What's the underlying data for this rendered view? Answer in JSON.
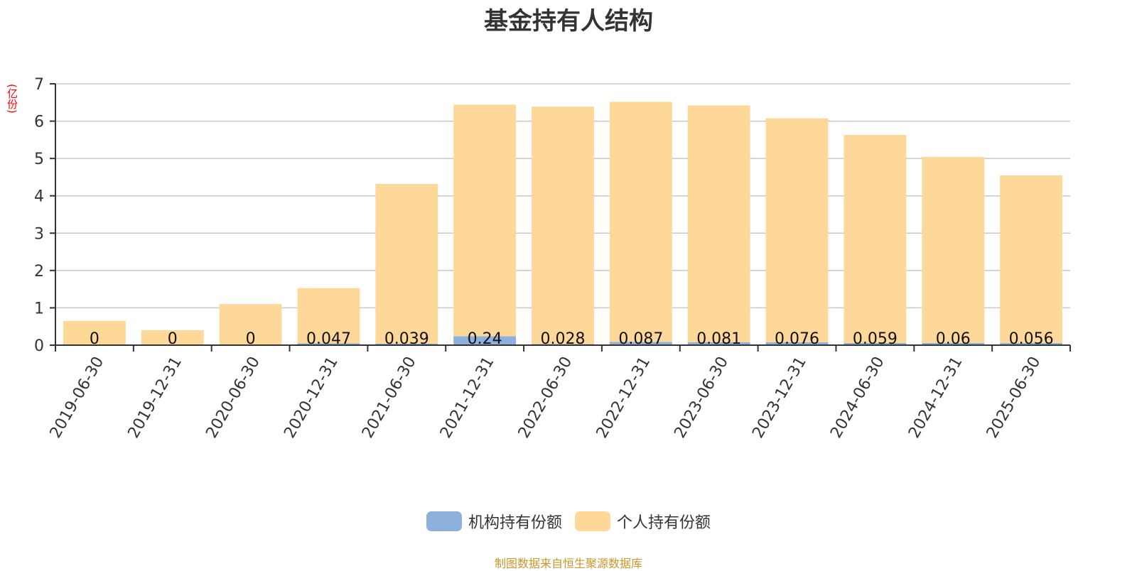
{
  "title": "基金持有人结构",
  "unit_label": "(亿份)",
  "source_note": "制图数据来自恒生聚源数据库",
  "colors": {
    "institutional": "#8eb0dc",
    "individual": "#fed899",
    "axis": "#333333",
    "grid": "#c8c8c8",
    "text": "#333333"
  },
  "legend": [
    {
      "label": "机构持有份额",
      "color": "#8eb0dc"
    },
    {
      "label": "个人持有份额",
      "color": "#fed899"
    }
  ],
  "chart_data": {
    "type": "bar",
    "stacked": true,
    "categories": [
      "2019-06-30",
      "2019-12-31",
      "2020-06-30",
      "2020-12-31",
      "2021-06-30",
      "2021-12-31",
      "2022-06-30",
      "2022-12-31",
      "2023-06-30",
      "2023-12-31",
      "2024-06-30",
      "2024-12-31",
      "2025-06-30"
    ],
    "series": [
      {
        "name": "机构持有份额",
        "values": [
          0,
          0,
          0,
          0.047,
          0.039,
          0.24,
          0.028,
          0.087,
          0.081,
          0.076,
          0.059,
          0.06,
          0.056
        ],
        "labels": [
          "0",
          "0",
          "0",
          "0.047",
          "0.039",
          "0.24",
          "0.028",
          "0.087",
          "0.081",
          "0.076",
          "0.059",
          "0.06",
          "0.056"
        ]
      },
      {
        "name": "个人持有份额",
        "values": [
          0.65,
          0.4,
          1.1,
          1.48,
          4.28,
          6.2,
          6.36,
          6.43,
          6.34,
          6.0,
          5.57,
          4.98,
          4.49
        ]
      }
    ],
    "ylim": [
      0,
      7
    ],
    "yticks": [
      "0",
      "1",
      "2",
      "3",
      "4",
      "5",
      "6",
      "7"
    ],
    "grid": true,
    "legend_position": "bottom-center"
  }
}
